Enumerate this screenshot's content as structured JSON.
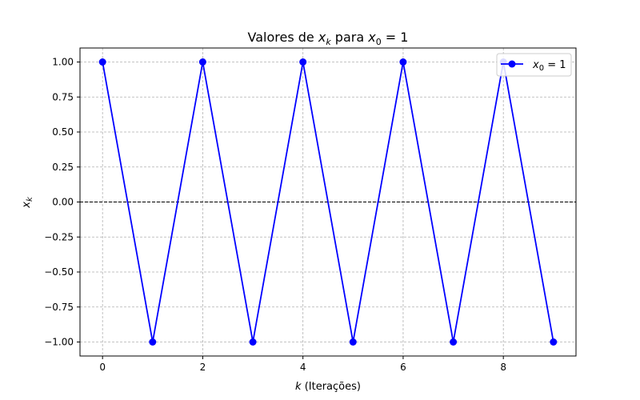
{
  "chart_data": {
    "type": "line",
    "title_parts": {
      "prefix": "Valores de ",
      "var": "x",
      "var_sub": "k",
      "middle": " para ",
      "var2": "x",
      "var2_sub": "0",
      "suffix": " = 1"
    },
    "xlabel": {
      "var": "k",
      "text": " (Iterações)"
    },
    "ylabel": {
      "var": "x",
      "sub": "k"
    },
    "x": [
      0,
      1,
      2,
      3,
      4,
      5,
      6,
      7,
      8,
      9
    ],
    "series": [
      {
        "name": "x0 = 1",
        "legend": {
          "var": "x",
          "sub": "0",
          "suffix": " = 1"
        },
        "color": "#0000ff",
        "marker": "circle",
        "values": [
          1,
          -1,
          1,
          -1,
          1,
          -1,
          1,
          -1,
          1,
          -1
        ]
      }
    ],
    "xlim": [
      -0.45,
      9.45
    ],
    "ylim": [
      -1.1,
      1.1
    ],
    "xticks": [
      0,
      2,
      4,
      6,
      8
    ],
    "yticks": [
      1.0,
      0.75,
      0.5,
      0.25,
      0.0,
      -0.25,
      -0.5,
      -0.75,
      -1.0
    ],
    "ytick_labels": [
      "1.00",
      "0.75",
      "0.50",
      "0.25",
      "0.00",
      "−0.25",
      "−0.50",
      "−0.75",
      "−1.00"
    ],
    "xtick_labels": [
      "0",
      "2",
      "4",
      "6",
      "8"
    ],
    "grid": true,
    "reference_line": {
      "y": 0,
      "style": "dashed",
      "color": "#000000"
    },
    "legend_position": "top-right"
  }
}
